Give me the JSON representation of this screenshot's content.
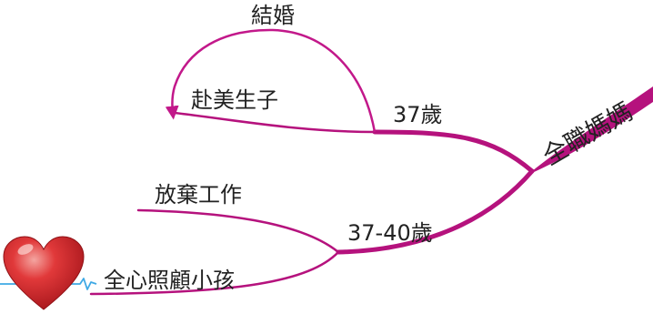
{
  "mindmap": {
    "central": "全職媽媽",
    "branches": [
      {
        "label": "37歲",
        "children": [
          {
            "label": "赴美生子"
          },
          {
            "label": "結婚"
          }
        ]
      },
      {
        "label": "37-40歲",
        "children": [
          {
            "label": "放棄工作"
          },
          {
            "label": "全心照顧小孩"
          }
        ]
      }
    ]
  },
  "colors": {
    "branch": "#b5127d",
    "loop_arrow": "#c2188a",
    "text": "#222222",
    "heart": "#d8252b",
    "heart_highlight": "#f4a5a0",
    "pulse_line": "#3fa9e5"
  },
  "icons": {
    "heart": "heart-icon",
    "pulse": "heartbeat-line-icon"
  }
}
